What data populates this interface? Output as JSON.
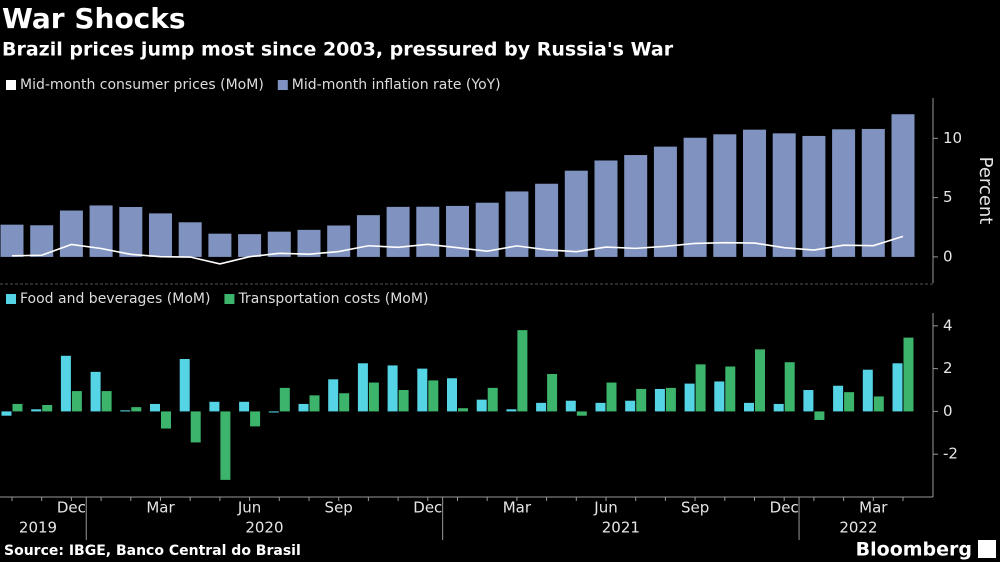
{
  "chart_data": {
    "type": "bar",
    "title": "War Shocks",
    "subtitle": "Brazil prices jump most since 2003, pressured by Russia's War",
    "source": "Source: IBGE, Banco Central do Brasil",
    "brand": "Bloomberg",
    "categories": [
      null,
      null,
      "Dec",
      null,
      null,
      "Mar",
      null,
      null,
      "Jun",
      null,
      null,
      "Sep",
      null,
      null,
      "Dec",
      null,
      null,
      "Mar",
      null,
      null,
      "Jun",
      null,
      null,
      "Sep",
      null,
      null,
      "Dec",
      null,
      null,
      "Mar",
      null
    ],
    "year_groups": [
      {
        "label": "2019",
        "months": 3
      },
      {
        "label": "2020",
        "months": 12
      },
      {
        "label": "2021",
        "months": 12
      },
      {
        "label": "2022",
        "months": 4
      }
    ],
    "panels": [
      {
        "ylabel": "Percent",
        "ylim": [
          -2.2,
          13.4
        ],
        "yticks": [
          0,
          5,
          10
        ],
        "series": [
          {
            "name": "Mid-month consumer prices (MoM)",
            "type": "line",
            "color": "#ffffff",
            "values": [
              0.09,
              0.14,
              1.05,
              0.71,
              0.22,
              0.02,
              -0.01,
              -0.59,
              0.02,
              0.3,
              0.23,
              0.45,
              0.94,
              0.81,
              1.06,
              0.78,
              0.48,
              0.93,
              0.6,
              0.44,
              0.83,
              0.72,
              0.89,
              1.14,
              1.2,
              1.17,
              0.78,
              0.58,
              0.99,
              0.95,
              1.73
            ]
          },
          {
            "name": "Mid-month inflation rate (YoY)",
            "type": "bar",
            "color": "#8093c0",
            "values": [
              2.72,
              2.67,
              3.91,
              4.34,
              4.21,
              3.67,
              2.92,
              1.96,
              1.92,
              2.13,
              2.28,
              2.65,
              3.52,
              4.22,
              4.23,
              4.3,
              4.57,
              5.52,
              6.17,
              7.27,
              8.13,
              8.59,
              9.3,
              10.05,
              10.34,
              10.73,
              10.42,
              10.2,
              10.76,
              10.79,
              12.03
            ]
          }
        ]
      },
      {
        "ylim": [
          -4,
          4.6
        ],
        "yticks": [
          -2,
          0,
          2,
          4
        ],
        "series": [
          {
            "name": "Food and beverages (MoM)",
            "type": "bar",
            "color": "#55d4e6",
            "values": [
              -0.2,
              0.1,
              2.6,
              1.85,
              0.05,
              0.35,
              2.45,
              0.45,
              0.45,
              -0.05,
              0.35,
              1.5,
              2.25,
              2.15,
              2.0,
              1.55,
              0.55,
              0.1,
              0.4,
              0.5,
              0.4,
              0.5,
              1.05,
              1.3,
              1.4,
              0.4,
              0.35,
              1.0,
              1.2,
              1.95,
              2.25
            ]
          },
          {
            "name": "Transportation costs (MoM)",
            "type": "bar",
            "color": "#3db46b",
            "values": [
              0.35,
              0.3,
              0.95,
              0.95,
              0.2,
              -0.8,
              -1.45,
              -3.2,
              -0.7,
              1.1,
              0.75,
              0.85,
              1.35,
              1.0,
              1.45,
              0.15,
              1.1,
              3.8,
              1.75,
              -0.2,
              1.35,
              1.05,
              1.1,
              2.2,
              2.1,
              2.9,
              2.3,
              -0.4,
              0.9,
              0.7,
              3.45
            ]
          }
        ]
      }
    ]
  }
}
